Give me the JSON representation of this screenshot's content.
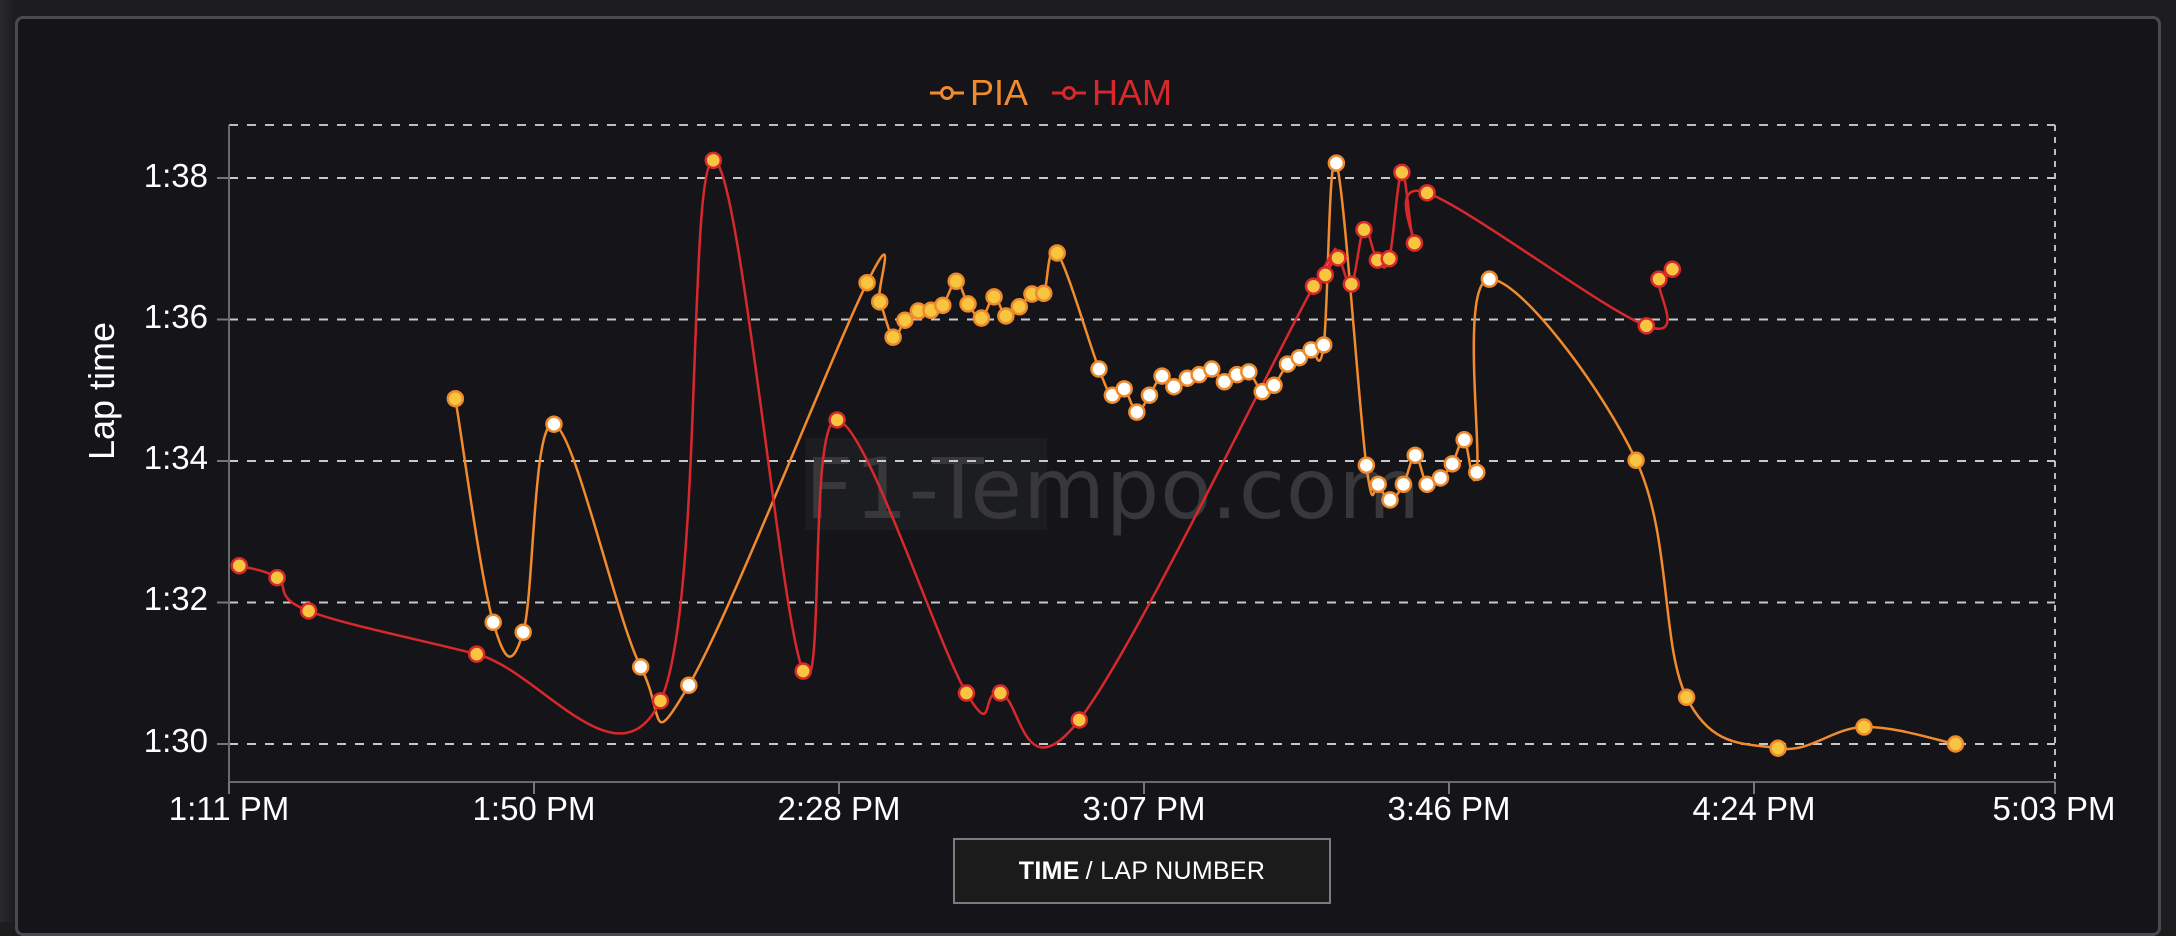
{
  "legend": {
    "items": [
      {
        "label": "PIA",
        "color": "#f28a2e"
      },
      {
        "label": "HAM",
        "color": "#d9282b"
      }
    ]
  },
  "axis": {
    "ylabel": "Lap time",
    "yticks": [
      "1:30",
      "1:32",
      "1:34",
      "1:36",
      "1:38"
    ],
    "xticks": [
      "1:11 PM",
      "1:50 PM",
      "2:28 PM",
      "3:07 PM",
      "3:46 PM",
      "4:24 PM",
      "5:03 PM"
    ]
  },
  "toggle": {
    "bold": "TIME",
    "rest": "/ LAP NUMBER"
  },
  "watermark": "F1-Tempo.com",
  "chart_data": {
    "type": "line",
    "title": "",
    "xlabel": "TIME / LAP NUMBER",
    "ylabel": "Lap time",
    "x_unit": "minutes after 1:11 PM",
    "y_unit": "seconds",
    "xlim": [
      0,
      234
    ],
    "ylim": [
      89.4,
      98.75
    ],
    "yticks": [
      90,
      92,
      94,
      96,
      98
    ],
    "ytick_labels": [
      "1:30",
      "1:32",
      "1:34",
      "1:36",
      "1:38"
    ],
    "xtick_labels": [
      "1:11 PM",
      "1:50 PM",
      "2:28 PM",
      "3:07 PM",
      "3:46 PM",
      "4:24 PM",
      "5:03 PM"
    ],
    "grid": true,
    "legend_position": "top-center",
    "series": [
      {
        "name": "PIA",
        "color": "#f28a2e",
        "points": [
          [
            28.7,
            94.88,
            "y"
          ],
          [
            33.5,
            91.72,
            "w"
          ],
          [
            37.3,
            91.58,
            "w"
          ],
          [
            41.2,
            94.52,
            "w"
          ],
          [
            52.2,
            91.09,
            "w"
          ],
          [
            58.3,
            90.83,
            "w"
          ],
          [
            80.9,
            96.52,
            "y"
          ],
          [
            82.5,
            96.25,
            "y"
          ],
          [
            84.2,
            95.75,
            "y"
          ],
          [
            85.7,
            95.99,
            "y"
          ],
          [
            87.4,
            96.12,
            "y"
          ],
          [
            89.0,
            96.13,
            "y"
          ],
          [
            90.5,
            96.2,
            "y"
          ],
          [
            92.2,
            96.54,
            "y"
          ],
          [
            93.7,
            96.22,
            "y"
          ],
          [
            95.4,
            96.02,
            "y"
          ],
          [
            97.0,
            96.32,
            "y"
          ],
          [
            98.5,
            96.05,
            "y"
          ],
          [
            100.2,
            96.18,
            "y"
          ],
          [
            101.8,
            96.36,
            "y"
          ],
          [
            103.3,
            96.37,
            "y"
          ],
          [
            105.0,
            96.94,
            "y"
          ],
          [
            110.3,
            95.3,
            "w"
          ],
          [
            112.0,
            94.93,
            "w"
          ],
          [
            113.5,
            95.02,
            "w"
          ],
          [
            115.1,
            94.69,
            "w"
          ],
          [
            116.7,
            94.93,
            "w"
          ],
          [
            118.3,
            95.2,
            "w"
          ],
          [
            119.8,
            95.05,
            "w"
          ],
          [
            121.5,
            95.17,
            "w"
          ],
          [
            123.0,
            95.22,
            "w"
          ],
          [
            124.6,
            95.3,
            "w"
          ],
          [
            126.2,
            95.12,
            "w"
          ],
          [
            127.8,
            95.22,
            "w"
          ],
          [
            129.3,
            95.26,
            "w"
          ],
          [
            131.0,
            94.98,
            "w"
          ],
          [
            132.5,
            95.07,
            "w"
          ],
          [
            134.2,
            95.37,
            "w"
          ],
          [
            135.7,
            95.46,
            "w"
          ],
          [
            137.2,
            95.57,
            "w"
          ],
          [
            138.8,
            95.64,
            "w"
          ],
          [
            140.4,
            98.21,
            "w"
          ],
          [
            144.2,
            93.94,
            "w"
          ],
          [
            145.7,
            93.67,
            "w"
          ],
          [
            147.2,
            93.45,
            "w"
          ],
          [
            148.9,
            93.67,
            "w"
          ],
          [
            150.4,
            94.08,
            "w"
          ],
          [
            151.9,
            93.67,
            "w"
          ],
          [
            153.6,
            93.76,
            "w"
          ],
          [
            155.1,
            93.96,
            "w"
          ],
          [
            156.6,
            94.3,
            "w"
          ],
          [
            158.2,
            93.84,
            "w"
          ],
          [
            159.8,
            96.57,
            "w"
          ],
          [
            178.4,
            94.01,
            "y"
          ],
          [
            184.8,
            90.66,
            "y"
          ],
          [
            196.4,
            89.94,
            "y"
          ],
          [
            207.3,
            90.24,
            "y"
          ],
          [
            218.9,
            90.0,
            "y"
          ]
        ]
      },
      {
        "name": "HAM",
        "color": "#d9282b",
        "points": [
          [
            1.3,
            92.52,
            "y"
          ],
          [
            6.1,
            92.35,
            "y"
          ],
          [
            10.1,
            91.88,
            "y"
          ],
          [
            31.4,
            91.27,
            "y"
          ],
          [
            54.7,
            90.61,
            "y"
          ],
          [
            61.4,
            98.25,
            "y"
          ],
          [
            72.8,
            91.03,
            "y"
          ],
          [
            77.1,
            94.58,
            "y"
          ],
          [
            93.5,
            90.72,
            "y"
          ],
          [
            97.8,
            90.72,
            "y"
          ],
          [
            107.8,
            90.34,
            "y"
          ],
          [
            137.5,
            96.47,
            "y"
          ],
          [
            139.0,
            96.63,
            "y"
          ],
          [
            140.6,
            96.87,
            "y"
          ],
          [
            142.3,
            96.5,
            "y"
          ],
          [
            143.9,
            97.27,
            "y"
          ],
          [
            145.6,
            96.84,
            "y"
          ],
          [
            147.1,
            96.86,
            "y"
          ],
          [
            148.7,
            98.08,
            "y"
          ],
          [
            150.3,
            97.08,
            "y"
          ],
          [
            151.9,
            97.79,
            "y"
          ],
          [
            179.7,
            95.91,
            "y"
          ],
          [
            181.3,
            96.57,
            "y"
          ],
          [
            183.0,
            96.71,
            "y"
          ]
        ]
      }
    ]
  }
}
